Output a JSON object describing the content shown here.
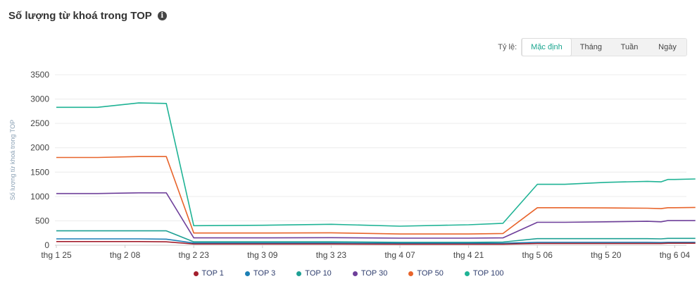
{
  "header": {
    "title": "Số lượng từ khoá trong TOP",
    "info_icon": "info-icon"
  },
  "scale": {
    "label": "Tỷ lệ:",
    "options": [
      "Mặc định",
      "Tháng",
      "Tuần",
      "Ngày"
    ],
    "selected": "Mặc định"
  },
  "colors": {
    "accent": "#1aa58f",
    "TOP 1": "#a31f2d",
    "TOP 3": "#1b7fb5",
    "TOP 10": "#1ea094",
    "TOP 30": "#6e3f9a",
    "TOP 50": "#e8642b",
    "TOP 100": "#1fb395"
  },
  "chart_data": {
    "type": "line",
    "ylabel": "Số lượng từ khoá trong TOP",
    "ylim": [
      0,
      3500
    ],
    "yticks": [
      0,
      500,
      1000,
      1500,
      2000,
      2500,
      3000,
      3500
    ],
    "xticks": [
      "thg 1 25",
      "thg 2 08",
      "thg 2 23",
      "thg 3 09",
      "thg 3 23",
      "thg 4 07",
      "thg 4 21",
      "thg 5 06",
      "thg 5 20",
      "thg 6 04"
    ],
    "x": [
      0,
      0.6,
      1.2,
      1.6,
      2.0,
      3.0,
      4.0,
      5.0,
      6.0,
      6.5,
      7.0,
      7.4,
      8.0,
      8.6,
      8.8,
      8.9,
      9.0,
      9.3
    ],
    "series": [
      {
        "name": "TOP 100",
        "values": [
          2830,
          2830,
          2920,
          2910,
          400,
          410,
          430,
          390,
          420,
          450,
          1250,
          1250,
          1290,
          1310,
          1300,
          1350,
          1350,
          1360
        ]
      },
      {
        "name": "TOP 50",
        "values": [
          1800,
          1800,
          1820,
          1820,
          250,
          250,
          255,
          230,
          230,
          240,
          770,
          770,
          765,
          760,
          750,
          770,
          770,
          775
        ]
      },
      {
        "name": "TOP 30",
        "values": [
          1060,
          1060,
          1075,
          1075,
          150,
          150,
          155,
          145,
          145,
          150,
          470,
          470,
          480,
          490,
          480,
          505,
          505,
          505
        ]
      },
      {
        "name": "TOP 10",
        "values": [
          295,
          295,
          295,
          295,
          70,
          70,
          70,
          60,
          60,
          65,
          135,
          135,
          135,
          135,
          130,
          140,
          140,
          140
        ]
      },
      {
        "name": "TOP 3",
        "values": [
          130,
          130,
          130,
          125,
          45,
          45,
          45,
          40,
          40,
          40,
          60,
          60,
          60,
          60,
          55,
          60,
          60,
          60
        ]
      },
      {
        "name": "TOP 1",
        "values": [
          75,
          75,
          75,
          70,
          25,
          25,
          25,
          20,
          20,
          20,
          35,
          35,
          35,
          35,
          35,
          40,
          40,
          40
        ]
      }
    ],
    "legend": [
      "TOP 1",
      "TOP 3",
      "TOP 10",
      "TOP 30",
      "TOP 50",
      "TOP 100"
    ],
    "grid": true,
    "legend_position": "bottom"
  }
}
